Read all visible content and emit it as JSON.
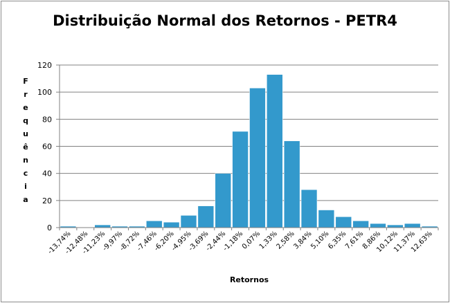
{
  "chart_data": {
    "type": "bar",
    "title": "Distribuição Normal dos Retornos - PETR4",
    "xlabel": "Retornos",
    "ylabel": "Frequência",
    "ylim": [
      0,
      120
    ],
    "yticks": [
      "0",
      "20",
      "40",
      "60",
      "80",
      "100",
      "120"
    ],
    "grid": true,
    "legend": "none",
    "bar_color": "#3399cc",
    "categories": [
      "-13,74%",
      "-12,48%",
      "-11,23%",
      "-9,97%",
      "-8,72%",
      "-7,46%",
      "-6,20%",
      "-4,95%",
      "-3,69%",
      "-2,44%",
      "-1,18%",
      "0,07%",
      "1,33%",
      "2,58%",
      "3,84%",
      "5,10%",
      "6,35%",
      "7,61%",
      "8,86%",
      "10,12%",
      "11,37%",
      "12,63%"
    ],
    "values": [
      1,
      0,
      2,
      1,
      1,
      5,
      4,
      9,
      16,
      40,
      71,
      103,
      113,
      64,
      28,
      13,
      8,
      5,
      3,
      2,
      3,
      1
    ]
  }
}
